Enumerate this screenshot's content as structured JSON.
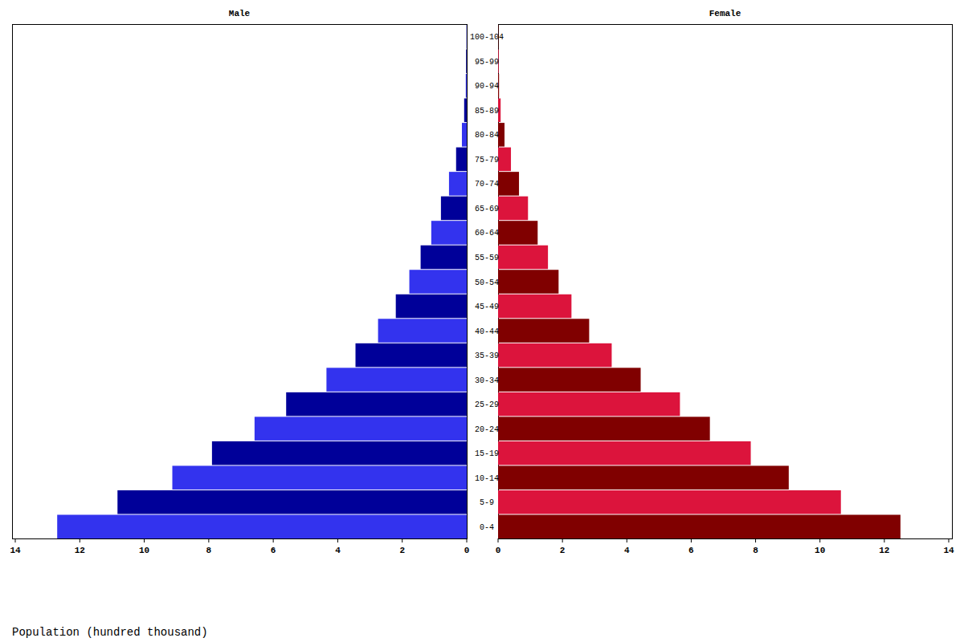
{
  "chart_data": {
    "type": "bar",
    "orientation": "horizontal",
    "x_label": "Population (hundred thousand)",
    "categories": [
      "0-4",
      "5-9",
      "10-14",
      "15-19",
      "20-24",
      "25-29",
      "30-34",
      "35-39",
      "40-44",
      "45-49",
      "50-54",
      "55-59",
      "60-64",
      "65-69",
      "70-74",
      "75-79",
      "80-84",
      "85-89",
      "90-94",
      "95-99",
      "100-104"
    ],
    "series": [
      {
        "name": "Male",
        "colors": [
          "#3333ee",
          "#000099",
          "#3333ee",
          "#000099",
          "#3333ee",
          "#000099",
          "#3333ee",
          "#000099",
          "#3333ee",
          "#000099",
          "#3333ee",
          "#000099",
          "#3333ee",
          "#000099",
          "#3333ee",
          "#000099",
          "#3333ee",
          "#000099",
          "#3333ee",
          "#000099",
          "#3333ee"
        ],
        "values": [
          12.7,
          10.83,
          9.13,
          7.9,
          6.58,
          5.6,
          4.35,
          3.45,
          2.75,
          2.2,
          1.78,
          1.43,
          1.1,
          0.8,
          0.55,
          0.33,
          0.15,
          0.08,
          0.03,
          0.02,
          0.01
        ]
      },
      {
        "name": "Female",
        "colors": [
          "#800000",
          "#dc143c",
          "#800000",
          "#dc143c",
          "#800000",
          "#dc143c",
          "#800000",
          "#dc143c",
          "#800000",
          "#dc143c",
          "#800000",
          "#dc143c",
          "#800000",
          "#dc143c",
          "#800000",
          "#dc143c",
          "#800000",
          "#dc143c",
          "#800000",
          "#dc143c",
          "#800000"
        ],
        "values": [
          12.5,
          10.65,
          9.03,
          7.85,
          6.58,
          5.65,
          4.43,
          3.53,
          2.83,
          2.28,
          1.88,
          1.55,
          1.23,
          0.93,
          0.65,
          0.4,
          0.2,
          0.08,
          0.03,
          0.02,
          0.01
        ]
      }
    ],
    "xlim": [
      0,
      14.1
    ],
    "xticks": [
      0,
      2,
      4,
      6,
      8,
      10,
      12,
      14
    ]
  }
}
